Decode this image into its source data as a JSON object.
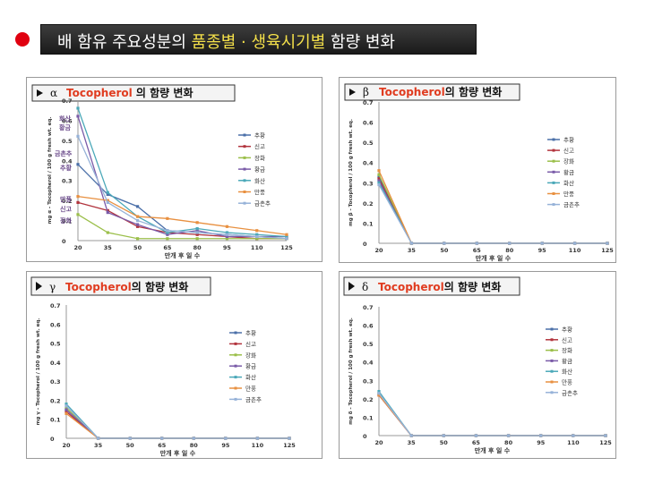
{
  "page": {
    "title_prefix": "배 함유 주요성분의 ",
    "title_highlight": "품종별 · 생육시기별",
    "title_suffix": " 함량 변화"
  },
  "chart_data": [
    {
      "type": "line",
      "greek": "α",
      "title_main": "Tocopherol",
      "title_rest": " 의 함량 변화",
      "ylabel": "mg α - Tocopherol / 100 g fresh wt. eq.",
      "xlabel": "만개 후 일 수",
      "x": [
        20,
        35,
        50,
        65,
        80,
        95,
        110,
        125
      ],
      "ylim": [
        0,
        0.7
      ],
      "yticks": [
        "0",
        "0.1",
        "0.2",
        "0.3",
        "0.4",
        "0.5",
        "0.6",
        "0.7"
      ],
      "legend_position": "right",
      "inline_labels": [
        "화산",
        "황금",
        "금촌추",
        "추황",
        "만풍",
        "신고",
        "장화"
      ],
      "series": [
        {
          "name": "추황",
          "color": "#4a6fa8",
          "values": [
            0.38,
            0.23,
            0.17,
            0.05,
            0.04,
            0.03,
            0.02,
            0.01
          ]
        },
        {
          "name": "신고",
          "color": "#b2343d",
          "values": [
            0.19,
            0.15,
            0.07,
            0.04,
            0.03,
            0.02,
            0.01,
            0.01
          ]
        },
        {
          "name": "장화",
          "color": "#9bbf4a",
          "values": [
            0.13,
            0.04,
            0.01,
            0.01,
            0.01,
            0.01,
            0.01,
            0.01
          ]
        },
        {
          "name": "황금",
          "color": "#7a5ba8",
          "values": [
            0.62,
            0.14,
            0.08,
            0.03,
            0.05,
            0.02,
            0.02,
            0.02
          ]
        },
        {
          "name": "화산",
          "color": "#4aa8b8",
          "values": [
            0.66,
            0.24,
            0.12,
            0.04,
            0.06,
            0.04,
            0.03,
            0.02
          ]
        },
        {
          "name": "만풍",
          "color": "#e89040",
          "values": [
            0.22,
            0.2,
            0.12,
            0.11,
            0.09,
            0.07,
            0.05,
            0.03
          ]
        },
        {
          "name": "금촌추",
          "color": "#96b2d8",
          "values": [
            0.52,
            0.19,
            0.1,
            0.05,
            0.04,
            0.03,
            0.02,
            0.01
          ]
        }
      ]
    },
    {
      "type": "line",
      "greek": "β",
      "title_main": "Tocopherol",
      "title_rest": "의 함량 변화",
      "ylabel": "mg β - Tocopherol / 100 g fresh wt. eq.",
      "xlabel": "만개 후 일 수",
      "x": [
        20,
        35,
        50,
        65,
        80,
        95,
        110,
        125
      ],
      "ylim": [
        0,
        0.7
      ],
      "yticks": [
        "0",
        "0.1",
        "0.2",
        "0.3",
        "0.4",
        "0.5",
        "0.6",
        "0.7"
      ],
      "legend_position": "right",
      "inline_labels": [],
      "series": [
        {
          "name": "추황",
          "color": "#4a6fa8",
          "values": [
            0.33,
            0,
            0,
            0,
            0,
            0,
            0,
            0
          ]
        },
        {
          "name": "신고",
          "color": "#b2343d",
          "values": [
            0.32,
            0,
            0,
            0,
            0,
            0,
            0,
            0
          ]
        },
        {
          "name": "장화",
          "color": "#9bbf4a",
          "values": [
            0.34,
            0,
            0,
            0,
            0,
            0,
            0,
            0
          ]
        },
        {
          "name": "황금",
          "color": "#7a5ba8",
          "values": [
            0.31,
            0,
            0,
            0,
            0,
            0,
            0,
            0
          ]
        },
        {
          "name": "화산",
          "color": "#4aa8b8",
          "values": [
            0.3,
            0,
            0,
            0,
            0,
            0,
            0,
            0
          ]
        },
        {
          "name": "만풍",
          "color": "#e89040",
          "values": [
            0.36,
            0,
            0,
            0,
            0,
            0,
            0,
            0
          ]
        },
        {
          "name": "금촌추",
          "color": "#96b2d8",
          "values": [
            0.29,
            0,
            0,
            0,
            0,
            0,
            0,
            0
          ]
        }
      ]
    },
    {
      "type": "line",
      "greek": "γ",
      "title_main": "Tocopherol",
      "title_rest": "의 함량 변화",
      "ylabel": "mg γ - Tocopherol / 100 g fresh wt. eq.",
      "xlabel": "만개 후 일 수",
      "x": [
        20,
        35,
        50,
        65,
        80,
        95,
        110,
        125
      ],
      "ylim": [
        0,
        0.7
      ],
      "yticks": [
        "0",
        "0.1",
        "0.2",
        "0.3",
        "0.4",
        "0.5",
        "0.6",
        "0.7"
      ],
      "legend_position": "right",
      "inline_labels": [],
      "series": [
        {
          "name": "추황",
          "color": "#4a6fa8",
          "values": [
            0.15,
            0,
            0,
            0,
            0,
            0,
            0,
            0
          ]
        },
        {
          "name": "신고",
          "color": "#b2343d",
          "values": [
            0.14,
            0,
            0,
            0,
            0,
            0,
            0,
            0
          ]
        },
        {
          "name": "장화",
          "color": "#9bbf4a",
          "values": [
            0.16,
            0,
            0,
            0,
            0,
            0,
            0,
            0
          ]
        },
        {
          "name": "황금",
          "color": "#7a5ba8",
          "values": [
            0.15,
            0,
            0,
            0,
            0,
            0,
            0,
            0
          ]
        },
        {
          "name": "화산",
          "color": "#4aa8b8",
          "values": [
            0.18,
            0,
            0,
            0,
            0,
            0,
            0,
            0
          ]
        },
        {
          "name": "만풍",
          "color": "#e89040",
          "values": [
            0.13,
            0,
            0,
            0,
            0,
            0,
            0,
            0
          ]
        },
        {
          "name": "금촌추",
          "color": "#96b2d8",
          "values": [
            0.17,
            0,
            0,
            0,
            0,
            0,
            0,
            0
          ]
        }
      ]
    },
    {
      "type": "line",
      "greek": "δ",
      "title_main": "Tocopherol",
      "title_rest": "의 함량 변화",
      "ylabel": "mg δ - Tocopherol / 100 g fresh wt. eq.",
      "xlabel": "만개 후 일 수",
      "x": [
        20,
        35,
        50,
        65,
        80,
        95,
        110,
        125
      ],
      "ylim": [
        0,
        0.7
      ],
      "yticks": [
        "0",
        "0.1",
        "0.2",
        "0.3",
        "0.4",
        "0.5",
        "0.6",
        "0.7"
      ],
      "legend_position": "right",
      "inline_labels": [],
      "series": [
        {
          "name": "추황",
          "color": "#4a6fa8",
          "values": [
            0.23,
            0,
            0,
            0,
            0,
            0,
            0,
            0
          ]
        },
        {
          "name": "신고",
          "color": "#b2343d",
          "values": [
            0.22,
            0,
            0,
            0,
            0,
            0,
            0,
            0
          ]
        },
        {
          "name": "장화",
          "color": "#9bbf4a",
          "values": [
            0.23,
            0,
            0,
            0,
            0,
            0,
            0,
            0
          ]
        },
        {
          "name": "황금",
          "color": "#7a5ba8",
          "values": [
            0.22,
            0,
            0,
            0,
            0,
            0,
            0,
            0
          ]
        },
        {
          "name": "화산",
          "color": "#4aa8b8",
          "values": [
            0.24,
            0,
            0,
            0,
            0,
            0,
            0,
            0
          ]
        },
        {
          "name": "만풍",
          "color": "#e89040",
          "values": [
            0.22,
            0,
            0,
            0,
            0,
            0,
            0,
            0
          ]
        },
        {
          "name": "금촌추",
          "color": "#96b2d8",
          "values": [
            0.23,
            0,
            0,
            0,
            0,
            0,
            0,
            0
          ]
        }
      ]
    }
  ]
}
